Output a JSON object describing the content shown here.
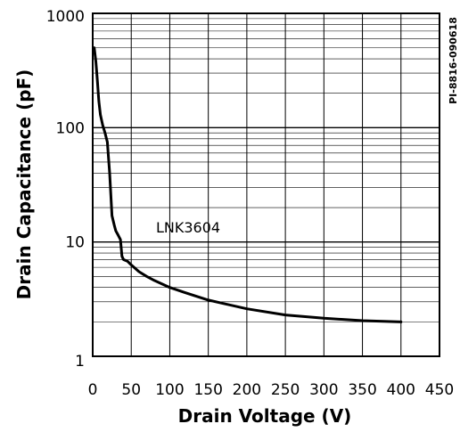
{
  "chart_data": {
    "type": "line",
    "xlabel": "Drain Voltage (V)",
    "ylabel": "Drain Capacitance (pF)",
    "xlim": [
      0,
      450
    ],
    "ylim": [
      1,
      1000
    ],
    "yscale": "log",
    "x_ticks": [
      "0",
      "50",
      "100",
      "150",
      "200",
      "250",
      "300",
      "350",
      "400",
      "450"
    ],
    "y_ticks": [
      "1",
      "10",
      "100",
      "1000"
    ],
    "grid": true,
    "annotation": "LNK3604",
    "side_code": "PI-8816-090618",
    "line_color": "#000000",
    "series": [
      {
        "x": [
          2,
          4,
          6,
          8,
          10,
          13,
          16,
          19,
          22,
          25,
          28,
          30,
          33,
          36,
          38,
          40,
          45,
          50,
          60,
          70,
          80,
          100,
          120,
          150,
          200,
          250,
          300,
          350,
          400
        ],
        "y": [
          500,
          380,
          260,
          170,
          130,
          105,
          90,
          75,
          40,
          17,
          14,
          12.5,
          11.5,
          10.5,
          7.5,
          7.0,
          6.8,
          6.3,
          5.5,
          5.0,
          4.6,
          4.0,
          3.6,
          3.1,
          2.6,
          2.3,
          2.15,
          2.05,
          2.0
        ]
      }
    ]
  }
}
